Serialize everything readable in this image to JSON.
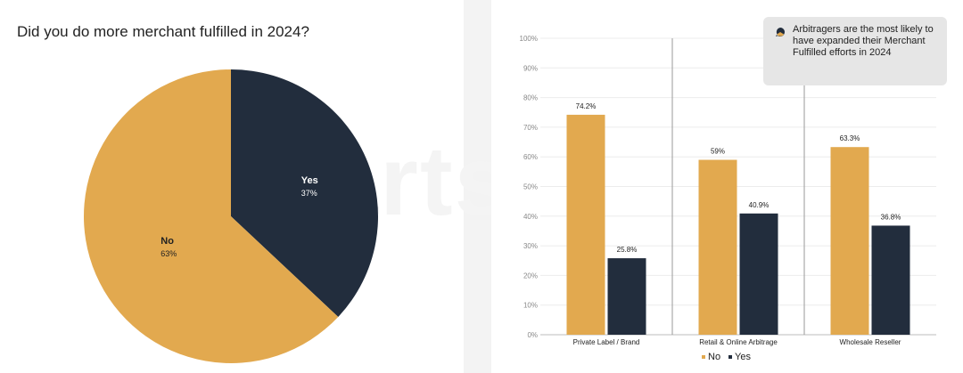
{
  "pie": {
    "title": "Did you do more merchant fulfilled in 2024?",
    "chart_data": {
      "type": "pie",
      "slices": [
        {
          "label": "Yes",
          "value": 37,
          "display": "37%",
          "color": "#222d3d"
        },
        {
          "label": "No",
          "value": 63,
          "display": "63%",
          "color": "#e2a94f"
        }
      ]
    }
  },
  "bar": {
    "chart_data": {
      "type": "bar",
      "categories": [
        "Private Label / Brand",
        "Retail & Online Arbitrage",
        "Wholesale Reseller"
      ],
      "series": [
        {
          "name": "No",
          "values": [
            74.2,
            59,
            63.3
          ],
          "labels": [
            "74.2%",
            "59%",
            "63.3%"
          ],
          "color": "#e2a94f"
        },
        {
          "name": "Yes",
          "values": [
            25.8,
            40.9,
            36.8
          ],
          "labels": [
            "25.8%",
            "40.9%",
            "36.8%"
          ],
          "color": "#222d3d"
        }
      ],
      "ylim": [
        0,
        100
      ],
      "yticks": [
        "0%",
        "10%",
        "20%",
        "30%",
        "40%",
        "50%",
        "60%",
        "70%",
        "80%",
        "90%",
        "100%"
      ],
      "grid": true,
      "legend": "bottom"
    },
    "callout": "Arbitragers are the most likely to have expanded their Merchant  Fulfilled efforts in 2024"
  },
  "watermark": "smartscout"
}
